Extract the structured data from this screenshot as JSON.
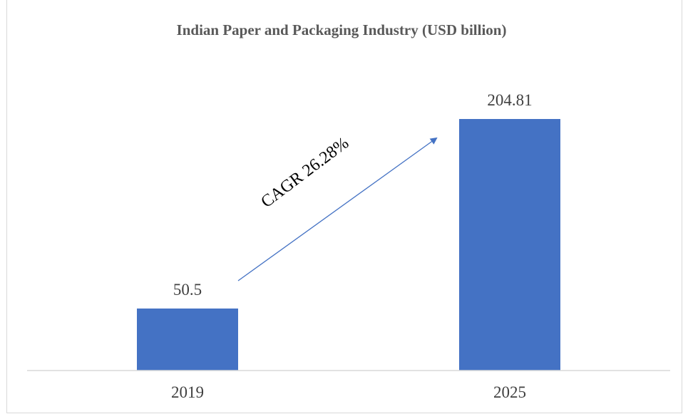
{
  "chart_data": {
    "type": "bar",
    "title": "Indian Paper and Packaging Industry (USD billion)",
    "categories": [
      "2019",
      "2025"
    ],
    "values": [
      50.5,
      204.81
    ],
    "data_labels": [
      "50.5",
      "204.81"
    ],
    "xlabel": "",
    "ylabel": "",
    "ylim": [
      0,
      250
    ],
    "grid": false,
    "legend": "none",
    "annotation": "CAGR 26.28%",
    "colors": {
      "bar": "#4472c4",
      "arrow": "#4472c4",
      "axis": "#d9d9d9",
      "text": "#404040",
      "title": "#595959"
    }
  }
}
